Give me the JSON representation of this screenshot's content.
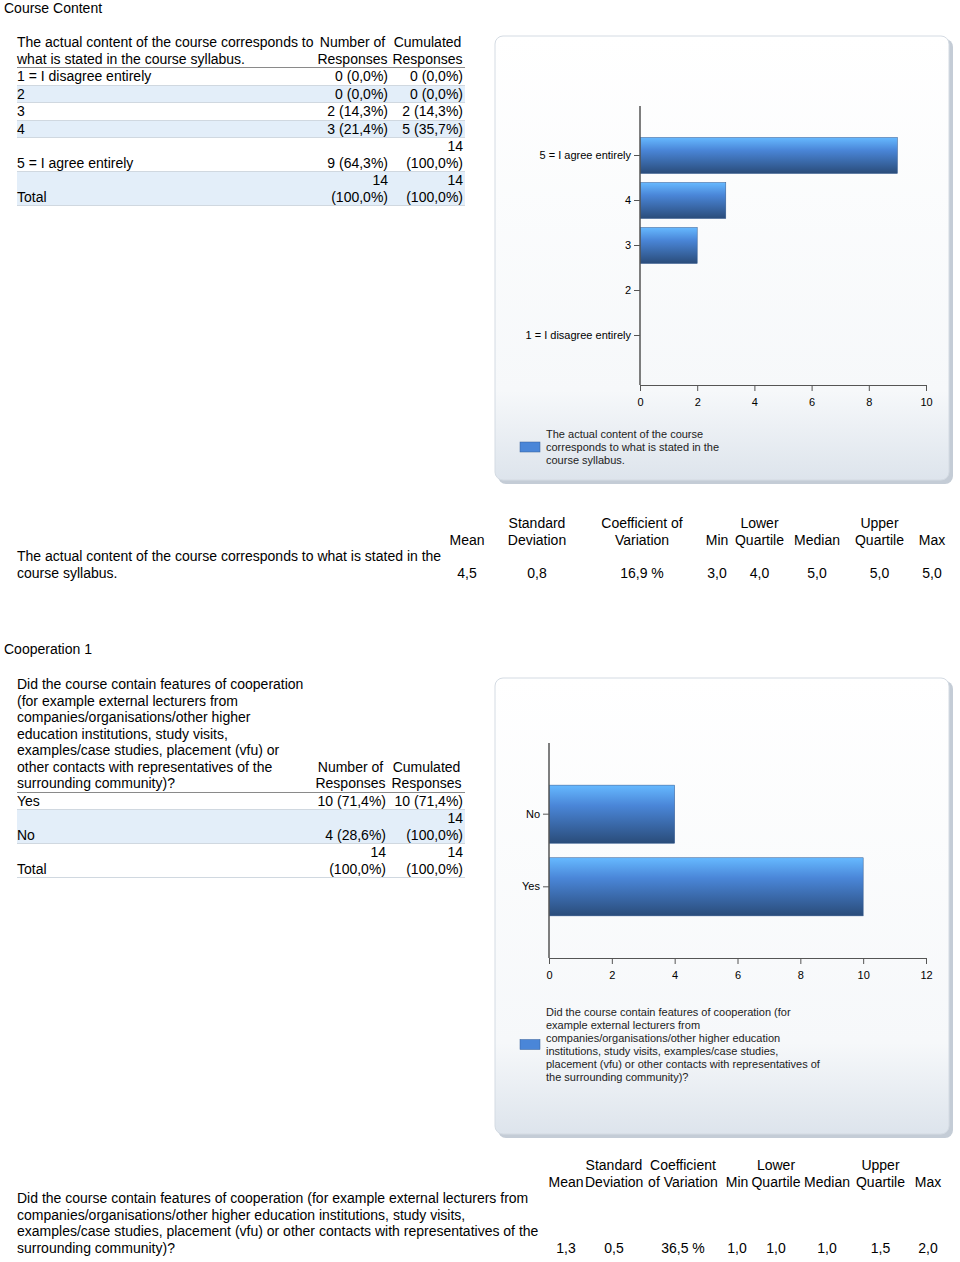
{
  "sections": [
    {
      "heading": "Course Content",
      "table": {
        "header": [
          "The actual content of the course corresponds to what is stated in the course syllabus.",
          "Number of Responses",
          "Cumulated Responses"
        ],
        "rows": [
          [
            "1 = I disagree entirely",
            "0 (0,0%)",
            "0 (0,0%)"
          ],
          [
            "2",
            "0 (0,0%)",
            "0 (0,0%)"
          ],
          [
            "3",
            "2 (14,3%)",
            "2 (14,3%)"
          ],
          [
            "4",
            "3 (21,4%)",
            "5 (35,7%)"
          ],
          [
            "5 = I agree entirely",
            "9 (64,3%)",
            "14 (100,0%)"
          ],
          [
            "Total",
            "14 (100,0%)",
            "14 (100,0%)"
          ]
        ]
      },
      "stats": {
        "header": [
          "Mean",
          "Standard Deviation",
          "Coefficient of Variation",
          "Min",
          "Lower Quartile",
          "Median",
          "Upper Quartile",
          "Max"
        ],
        "label": "The actual content of the course corresponds to what is stated in the course syllabus.",
        "values": [
          "4,5",
          "0,8",
          "16,9 %",
          "3,0",
          "4,0",
          "5,0",
          "5,0",
          "5,0"
        ]
      }
    },
    {
      "heading": "Cooperation 1",
      "table": {
        "header": [
          "Did the course contain features of cooperation (for example external lecturers from companies/organisations/other higher education institutions, study visits, examples/case studies, placement (vfu) or other contacts with representatives of the surrounding community)?",
          "Number of Responses",
          "Cumulated Responses"
        ],
        "rows": [
          [
            "Yes",
            "10 (71,4%)",
            "10 (71,4%)"
          ],
          [
            "No",
            "4 (28,6%)",
            "14 (100,0%)"
          ],
          [
            "Total",
            "14 (100,0%)",
            "14 (100,0%)"
          ]
        ]
      },
      "stats": {
        "header": [
          "Mean",
          "Standard Deviation",
          "Coefficient of Variation",
          "Min",
          "Lower Quartile",
          "Median",
          "Upper Quartile",
          "Max"
        ],
        "label": "Did the course contain features of cooperation (for example external lecturers from companies/organisations/other higher education institutions, study visits, examples/case studies, placement (vfu) or other contacts with representatives of the surrounding community)?",
        "values": [
          "1,3",
          "0,5",
          "36,5 %",
          "1,0",
          "1,0",
          "1,0",
          "1,5",
          "2,0"
        ]
      }
    }
  ],
  "chart_data": [
    {
      "type": "bar",
      "orientation": "horizontal",
      "categories": [
        "1 = I disagree entirely",
        "2",
        "3",
        "4",
        "5 = I agree entirely"
      ],
      "series": [
        {
          "name": "The actual content of the course corresponds to what is stated in the course syllabus.",
          "color": "#4a86d8",
          "values": [
            0,
            0,
            2,
            3,
            9
          ]
        }
      ],
      "xlim": [
        0,
        10
      ],
      "xticks": [
        0,
        2,
        4,
        6,
        8,
        10
      ],
      "legend": "bottom"
    },
    {
      "type": "bar",
      "orientation": "horizontal",
      "categories": [
        "Yes",
        "No"
      ],
      "series": [
        {
          "name": "Did the course contain features of cooperation (for example external lecturers from companies/organisations/other higher education institutions, study visits, examples/case studies, placement (vfu) or other contacts with representatives of the surrounding community)?",
          "color": "#4a86d8",
          "values": [
            10,
            4
          ]
        }
      ],
      "xlim": [
        0,
        12
      ],
      "xticks": [
        0,
        2,
        4,
        6,
        8,
        10,
        12
      ],
      "legend": "bottom"
    }
  ]
}
